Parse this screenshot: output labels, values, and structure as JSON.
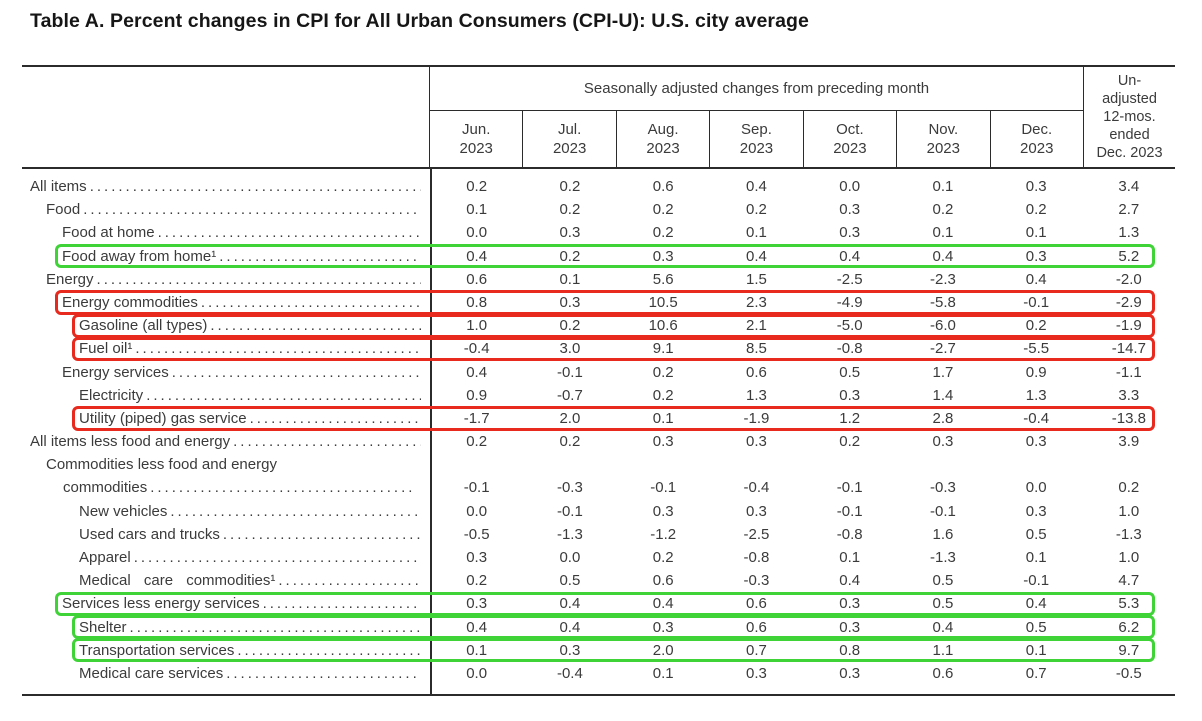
{
  "title": "Table A. Percent changes in CPI for All Urban Consumers (CPI-U): U.S. city average",
  "colors": {
    "highlight_green": "#3fd338",
    "highlight_red": "#e8291d",
    "line": "#2b2b2b",
    "text": "#3b3b3b"
  },
  "table": {
    "header": {
      "group_label": "Seasonally adjusted changes from preceding month",
      "months": [
        {
          "abbr": "Jun.",
          "year": "2023"
        },
        {
          "abbr": "Jul.",
          "year": "2023"
        },
        {
          "abbr": "Aug.",
          "year": "2023"
        },
        {
          "abbr": "Sep.",
          "year": "2023"
        },
        {
          "abbr": "Oct.",
          "year": "2023"
        },
        {
          "abbr": "Nov.",
          "year": "2023"
        },
        {
          "abbr": "Dec.",
          "year": "2023"
        }
      ],
      "unadjusted_lines": [
        "Un-",
        "adjusted",
        "12-mos.",
        "ended",
        "Dec. 2023"
      ]
    },
    "rows": [
      {
        "label": "All items",
        "indent": 0,
        "values": [
          "0.2",
          "0.2",
          "0.6",
          "0.4",
          "0.0",
          "0.1",
          "0.3",
          "3.4"
        ]
      },
      {
        "label": "Food",
        "indent": 1,
        "values": [
          "0.1",
          "0.2",
          "0.2",
          "0.2",
          "0.3",
          "0.2",
          "0.2",
          "2.7"
        ]
      },
      {
        "label": "Food at home",
        "indent": 2,
        "values": [
          "0.0",
          "0.3",
          "0.2",
          "0.1",
          "0.3",
          "0.1",
          "0.1",
          "1.3"
        ]
      },
      {
        "label": "Food away from home¹",
        "indent": 2,
        "highlight": "green",
        "values": [
          "0.4",
          "0.2",
          "0.3",
          "0.4",
          "0.4",
          "0.4",
          "0.3",
          "5.2"
        ]
      },
      {
        "label": "Energy",
        "indent": 1,
        "values": [
          "0.6",
          "0.1",
          "5.6",
          "1.5",
          "-2.5",
          "-2.3",
          "0.4",
          "-2.0"
        ]
      },
      {
        "label": "Energy commodities",
        "indent": 2,
        "highlight": "red",
        "values": [
          "0.8",
          "0.3",
          "10.5",
          "2.3",
          "-4.9",
          "-5.8",
          "-0.1",
          "-2.9"
        ]
      },
      {
        "label": "Gasoline (all types)",
        "indent": 3,
        "highlight": "red",
        "values": [
          "1.0",
          "0.2",
          "10.6",
          "2.1",
          "-5.0",
          "-6.0",
          "0.2",
          "-1.9"
        ]
      },
      {
        "label": "Fuel oil¹",
        "indent": 3,
        "highlight": "red",
        "values": [
          "-0.4",
          "3.0",
          "9.1",
          "8.5",
          "-0.8",
          "-2.7",
          "-5.5",
          "-14.7"
        ]
      },
      {
        "label": "Energy services",
        "indent": 2,
        "values": [
          "0.4",
          "-0.1",
          "0.2",
          "0.6",
          "0.5",
          "1.7",
          "0.9",
          "-1.1"
        ]
      },
      {
        "label": "Electricity",
        "indent": 3,
        "values": [
          "0.9",
          "-0.7",
          "0.2",
          "1.3",
          "0.3",
          "1.4",
          "1.3",
          "3.3"
        ]
      },
      {
        "label": "Utility (piped) gas service",
        "indent": 3,
        "highlight": "red",
        "values": [
          "-1.7",
          "2.0",
          "0.1",
          "-1.9",
          "1.2",
          "2.8",
          "-0.4",
          "-13.8"
        ]
      },
      {
        "label": "All items less food and energy",
        "indent": 0,
        "values": [
          "0.2",
          "0.2",
          "0.3",
          "0.3",
          "0.2",
          "0.3",
          "0.3",
          "3.9"
        ]
      },
      {
        "label": "Commodities less food and energy",
        "label2": "commodities",
        "indent": 1,
        "values": [
          "-0.1",
          "-0.3",
          "-0.1",
          "-0.4",
          "-0.1",
          "-0.3",
          "0.0",
          "0.2"
        ]
      },
      {
        "label": "New vehicles",
        "indent": 3,
        "values": [
          "0.0",
          "-0.1",
          "0.3",
          "0.3",
          "-0.1",
          "-0.1",
          "0.3",
          "1.0"
        ]
      },
      {
        "label": "Used cars and trucks",
        "indent": 3,
        "values": [
          "-0.5",
          "-1.3",
          "-1.2",
          "-2.5",
          "-0.8",
          "1.6",
          "0.5",
          "-1.3"
        ]
      },
      {
        "label": "Apparel",
        "indent": 3,
        "values": [
          "0.3",
          "0.0",
          "0.2",
          "-0.8",
          "0.1",
          "-1.3",
          "0.1",
          "1.0"
        ]
      },
      {
        "label": "Medical care commodities¹",
        "indent": 3,
        "wide": true,
        "values": [
          "0.2",
          "0.5",
          "0.6",
          "-0.3",
          "0.4",
          "0.5",
          "-0.1",
          "4.7"
        ]
      },
      {
        "label": "Services less energy services",
        "indent": 2,
        "highlight": "green",
        "values": [
          "0.3",
          "0.4",
          "0.4",
          "0.6",
          "0.3",
          "0.5",
          "0.4",
          "5.3"
        ]
      },
      {
        "label": "Shelter",
        "indent": 3,
        "highlight": "green",
        "values": [
          "0.4",
          "0.4",
          "0.3",
          "0.6",
          "0.3",
          "0.4",
          "0.5",
          "6.2"
        ]
      },
      {
        "label": "Transportation services",
        "indent": 3,
        "highlight": "green",
        "values": [
          "0.1",
          "0.3",
          "2.0",
          "0.7",
          "0.8",
          "1.1",
          "0.1",
          "9.7"
        ]
      },
      {
        "label": "Medical care services",
        "indent": 3,
        "values": [
          "0.0",
          "-0.4",
          "0.1",
          "0.3",
          "0.3",
          "0.6",
          "0.7",
          "-0.5"
        ]
      }
    ]
  }
}
